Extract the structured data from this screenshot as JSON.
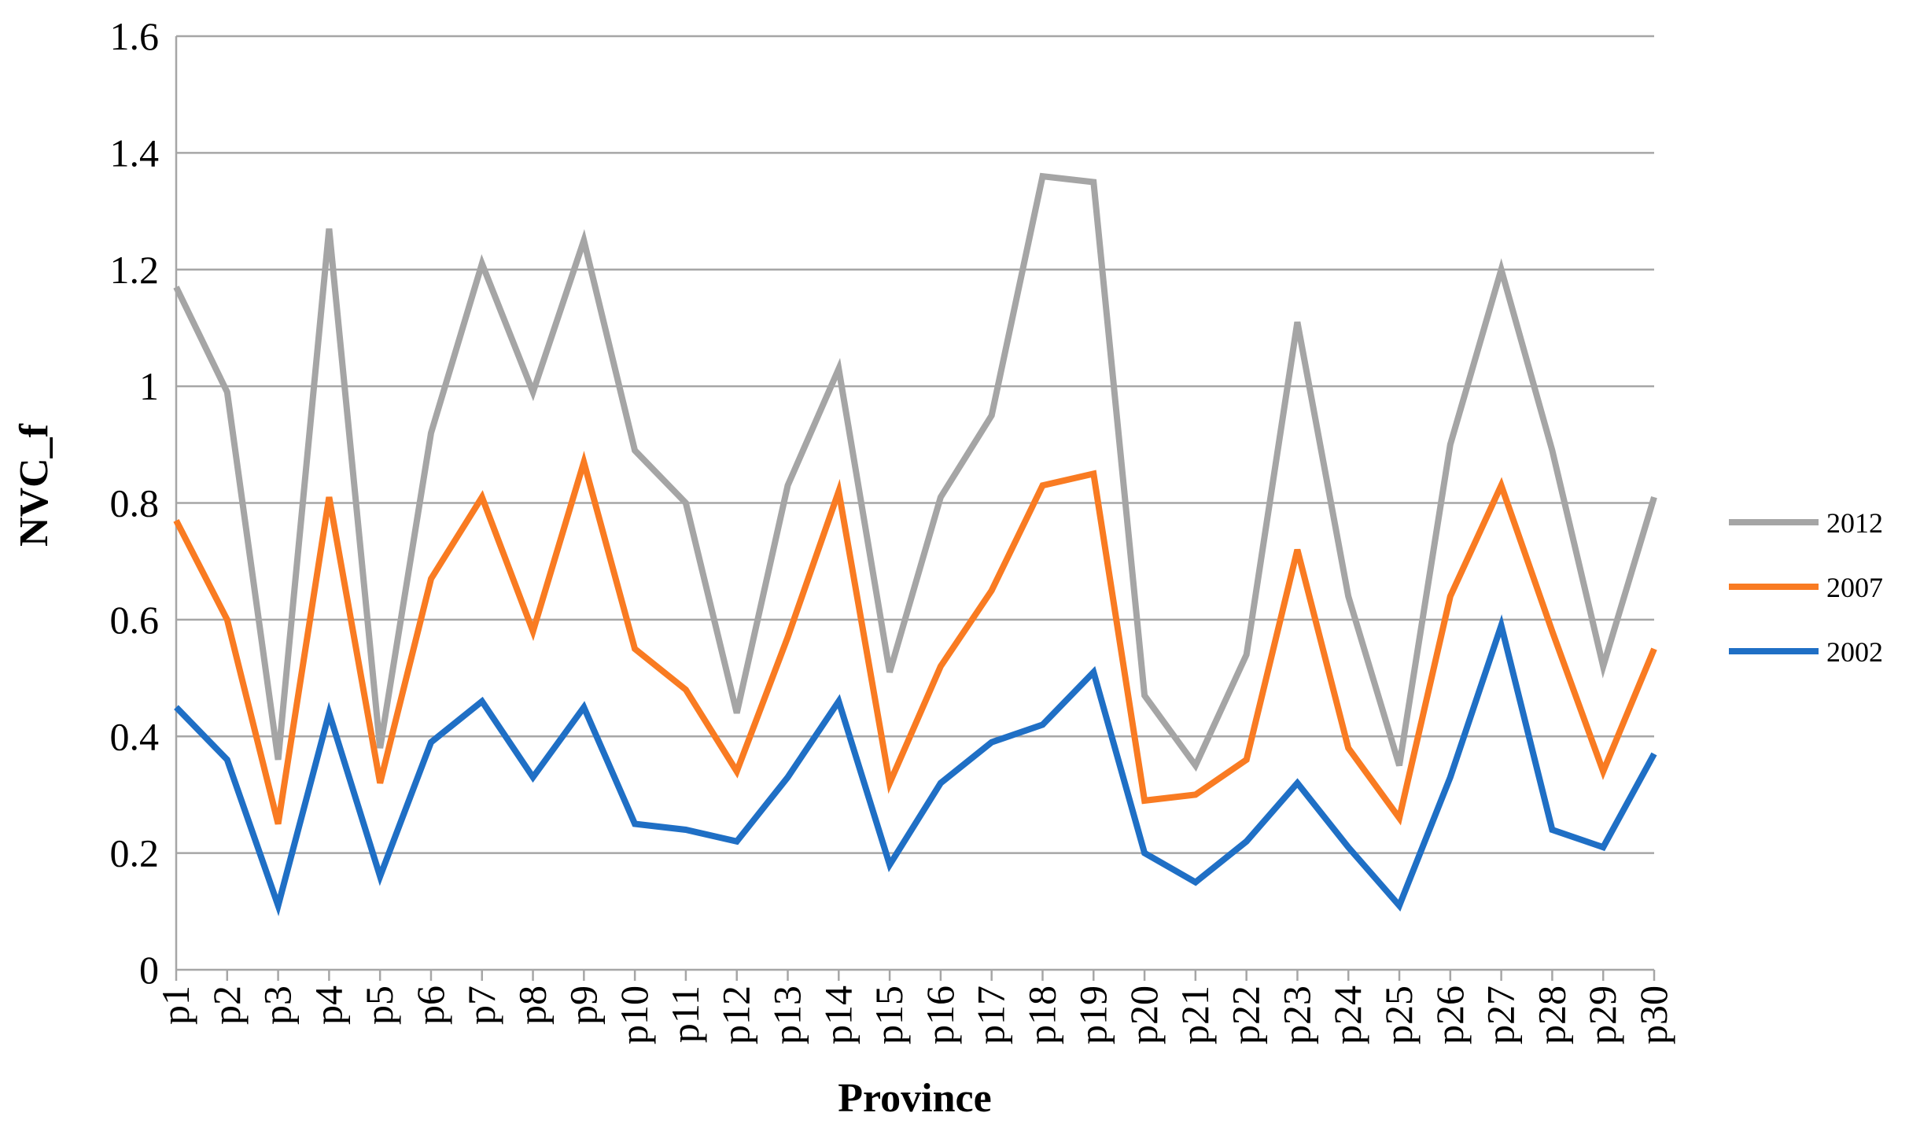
{
  "chart_data": {
    "type": "line",
    "title": "",
    "xlabel": "Province",
    "ylabel": "NVC_f",
    "ylim": [
      0,
      1.6
    ],
    "yticks": [
      "0",
      "0.2",
      "0.4",
      "0.6",
      "0.8",
      "1",
      "1.2",
      "1.4",
      "1.6"
    ],
    "grid": "horizontal",
    "legend_position": "right",
    "categories": [
      "p1",
      "p2",
      "p3",
      "p4",
      "p5",
      "p6",
      "p7",
      "p8",
      "p9",
      "p10",
      "p11",
      "p12",
      "p13",
      "p14",
      "p15",
      "p16",
      "p17",
      "p18",
      "p19",
      "p20",
      "p21",
      "p22",
      "p23",
      "p24",
      "p25",
      "p26",
      "p27",
      "p28",
      "p29",
      "p30"
    ],
    "series": [
      {
        "name": "2012",
        "color": "#A5A5A5",
        "values": [
          1.17,
          0.99,
          0.36,
          1.27,
          0.38,
          0.92,
          1.21,
          0.99,
          1.25,
          0.89,
          0.8,
          0.44,
          0.83,
          1.03,
          0.51,
          0.81,
          0.95,
          1.36,
          1.35,
          0.47,
          0.35,
          0.54,
          1.11,
          0.64,
          0.35,
          0.9,
          1.2,
          0.89,
          0.52,
          0.81
        ]
      },
      {
        "name": "2007",
        "color": "#F97B22",
        "values": [
          0.77,
          0.6,
          0.25,
          0.81,
          0.32,
          0.67,
          0.81,
          0.58,
          0.87,
          0.55,
          0.48,
          0.34,
          0.57,
          0.82,
          0.32,
          0.52,
          0.65,
          0.83,
          0.85,
          0.29,
          0.3,
          0.36,
          0.72,
          0.38,
          0.26,
          0.64,
          0.83,
          0.58,
          0.34,
          0.55
        ]
      },
      {
        "name": "2002",
        "color": "#1F6FC5",
        "values": [
          0.45,
          0.36,
          0.11,
          0.44,
          0.16,
          0.39,
          0.46,
          0.33,
          0.45,
          0.25,
          0.24,
          0.22,
          0.33,
          0.46,
          0.18,
          0.32,
          0.39,
          0.42,
          0.51,
          0.2,
          0.15,
          0.22,
          0.32,
          0.21,
          0.11,
          0.33,
          0.59,
          0.24,
          0.21,
          0.37
        ]
      }
    ]
  }
}
